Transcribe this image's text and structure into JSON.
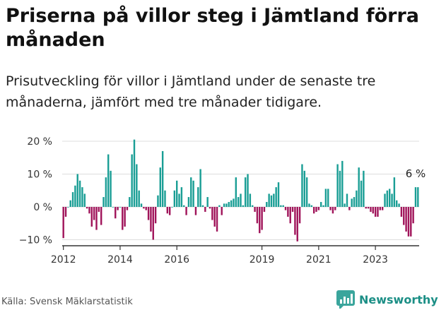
{
  "title": "Priserna på villor steg i Jämtland förra månaden",
  "subtitle": "Prisutveckling för villor i Jämtland under de senaste tre månaderna, jämfört med tre månader tidigare.",
  "source": "Källa: Svensk Mäklarstatistik",
  "brand": {
    "name": "Newsworthy",
    "icon": "newsworthy-logo-icon",
    "color": "#3aa59c"
  },
  "chart_data": {
    "type": "bar",
    "title": "",
    "xlabel": "",
    "ylabel": "",
    "x_start": "2012-01",
    "x_tick_labels": [
      "2012",
      "2014",
      "2016",
      "2019",
      "2021",
      "2023"
    ],
    "x_tick_years": [
      2012,
      2014,
      2016,
      2019,
      2021,
      2023
    ],
    "y_ticks": [
      20,
      10,
      0,
      -10
    ],
    "y_tick_labels": [
      "20 %",
      "10 %",
      "0 %",
      "−10 %"
    ],
    "ylim": [
      -11,
      21
    ],
    "grid": true,
    "colors": {
      "positive": "#1a9e95",
      "negative": "#a0145a"
    },
    "annotation": {
      "text": "6 %",
      "value": 6
    },
    "values": [
      -9.5,
      -3,
      0,
      2,
      4.5,
      6.5,
      10,
      8,
      6,
      4,
      -0.5,
      -2,
      -6,
      -4,
      -7,
      -1.5,
      -5.5,
      3,
      9,
      16,
      11,
      0,
      -3.5,
      -1,
      0,
      -7,
      -6,
      -1,
      3,
      16,
      20.5,
      13,
      5,
      1,
      -0.5,
      -1,
      -4,
      -7.5,
      -10,
      -5,
      3.5,
      12,
      17,
      5,
      -2,
      -2.5,
      0,
      5,
      8,
      4,
      6,
      0.5,
      -2.5,
      3,
      9,
      8,
      -2.5,
      6,
      11.5,
      0.5,
      -1.5,
      3,
      -0.5,
      -4,
      -6,
      -7.5,
      0.5,
      -2.5,
      1,
      1,
      1.5,
      2,
      2.5,
      9,
      3,
      4,
      0.5,
      9,
      10,
      4,
      0.5,
      -1.5,
      -5,
      -8,
      -7,
      -1.5,
      1.5,
      4,
      3.5,
      4,
      6,
      7.5,
      0.5,
      0.5,
      -1,
      -3,
      -5,
      -1.5,
      -8.5,
      -10.5,
      -5,
      13,
      11,
      9,
      1,
      0.5,
      -2,
      -1.5,
      -1,
      1.5,
      0.5,
      5.5,
      5.5,
      -1,
      -2,
      -1,
      13,
      11,
      14,
      1,
      4,
      -1,
      2.5,
      3,
      5,
      12,
      8,
      11,
      -0.5,
      -0.5,
      -1.5,
      -2,
      -3,
      -3,
      -1,
      -1,
      4,
      5,
      5.5,
      4,
      9,
      2,
      1,
      -3,
      -5.5,
      -7.5,
      -9,
      -9,
      -5,
      6,
      6
    ]
  }
}
